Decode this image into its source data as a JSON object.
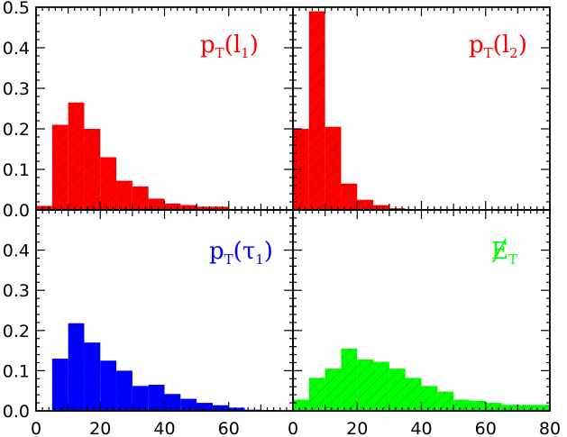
{
  "chart_data": [
    {
      "type": "bar",
      "panel": "top-left",
      "label": {
        "main": "p",
        "sub1": "T",
        "arg": "l",
        "sub2": "1"
      },
      "color": "#ff0000",
      "bin_edges": [
        0,
        5,
        10,
        15,
        20,
        25,
        30,
        35,
        40,
        45,
        50,
        55,
        60,
        65,
        70,
        75,
        80
      ],
      "values": [
        0.01,
        0.21,
        0.265,
        0.2,
        0.13,
        0.072,
        0.058,
        0.028,
        0.016,
        0.012,
        0.008,
        0.008,
        0.0,
        0.0,
        0.0,
        0.0
      ],
      "xlim": [
        0,
        80
      ],
      "ylim": [
        0,
        0.5
      ],
      "grid": false
    },
    {
      "type": "bar",
      "panel": "top-right",
      "label": {
        "main": "p",
        "sub1": "T",
        "arg": "l",
        "sub2": "2"
      },
      "color": "#ff0000",
      "bin_edges": [
        0,
        5,
        10,
        15,
        20,
        25,
        30,
        35,
        40,
        45,
        50,
        55,
        60,
        65,
        70,
        75,
        80
      ],
      "values": [
        0.2,
        0.49,
        0.205,
        0.065,
        0.025,
        0.012,
        0.004,
        0.002,
        0.0,
        0.0,
        0.0,
        0.0,
        0.0,
        0.0,
        0.0,
        0.0
      ],
      "xlim": [
        0,
        80
      ],
      "ylim": [
        0,
        0.5
      ],
      "grid": false
    },
    {
      "type": "bar",
      "panel": "bottom-left",
      "label": {
        "main": "p",
        "sub1": "T",
        "arg": "τ",
        "sub2": "1"
      },
      "color": "#0000ff",
      "bin_edges": [
        0,
        5,
        10,
        15,
        20,
        25,
        30,
        35,
        40,
        45,
        50,
        55,
        60,
        65,
        70,
        75,
        80
      ],
      "values": [
        0.0,
        0.13,
        0.218,
        0.17,
        0.125,
        0.1,
        0.062,
        0.065,
        0.042,
        0.03,
        0.02,
        0.014,
        0.008,
        0.003,
        0.002,
        0.0
      ],
      "xlim": [
        0,
        80
      ],
      "ylim": [
        0,
        0.5
      ],
      "xticks": [
        0,
        20,
        40,
        60
      ],
      "grid": false
    },
    {
      "type": "bar",
      "panel": "bottom-right",
      "label": {
        "main": "E",
        "sub1": "T",
        "slash": true
      },
      "color": "#00ff00",
      "bin_edges": [
        0,
        5,
        10,
        15,
        20,
        25,
        30,
        35,
        40,
        45,
        50,
        55,
        60,
        65,
        70,
        75,
        80
      ],
      "values": [
        0.028,
        0.082,
        0.105,
        0.155,
        0.128,
        0.122,
        0.105,
        0.082,
        0.062,
        0.048,
        0.028,
        0.025,
        0.02,
        0.015,
        0.015,
        0.015
      ],
      "xlim": [
        0,
        80
      ],
      "ylim": [
        0,
        0.5
      ],
      "xticks": [
        0,
        20,
        40,
        60,
        80
      ],
      "grid": false
    }
  ],
  "axes": {
    "y_tick_labels": [
      "0.0",
      "0.1",
      "0.2",
      "0.3",
      "0.4",
      "0.5"
    ],
    "y_tick_labels_lower": [
      "0.0",
      "0.1",
      "0.2",
      "0.3",
      "0.4"
    ]
  }
}
